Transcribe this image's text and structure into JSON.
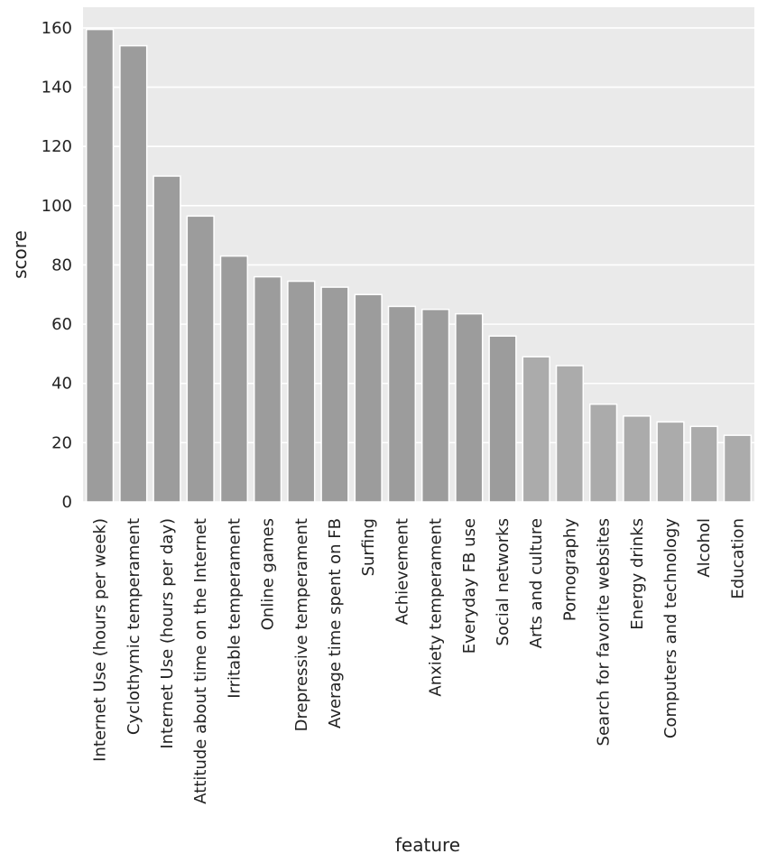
{
  "chart_data": {
    "type": "bar",
    "xlabel": "feature",
    "ylabel": "score",
    "ylim": [
      0,
      167
    ],
    "yticks": [
      0,
      20,
      40,
      60,
      80,
      100,
      120,
      140,
      160
    ],
    "grid": true,
    "categories": [
      "Internet Use (hours per week)",
      "Cyclothymic temperament",
      "Internet Use (hours per day)",
      "Attitude about time on the Internet",
      "Irritable temperament",
      "Online games",
      "Drepressive temperament",
      "Average time spent on FB",
      "Surfing",
      "Achievement",
      "Anxiety temperament",
      "Everyday FB use",
      "Social networks",
      "Arts and culture",
      "Pornography",
      "Search for favorite websites",
      "Energy drinks",
      "Computers and technology",
      "Alcohol",
      "Education"
    ],
    "values": [
      159.5,
      154,
      110,
      96.5,
      83,
      76,
      74.5,
      72.5,
      70,
      66,
      65,
      63.5,
      56,
      49,
      46,
      33,
      29,
      27,
      25.5,
      22.5
    ],
    "colors": {
      "plot_background": "#eaeaea",
      "grid": "#ffffff",
      "bar": "#9c9c9c",
      "bar_light": "#ababab"
    }
  }
}
